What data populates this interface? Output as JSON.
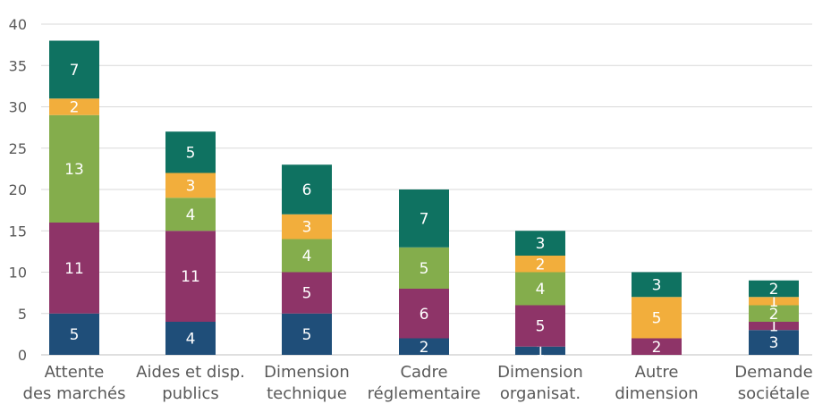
{
  "chart_data": {
    "type": "bar",
    "stacked": true,
    "title": "",
    "xlabel": "",
    "ylabel": "",
    "ylim": [
      0,
      40
    ],
    "yticks": [
      0,
      5,
      10,
      15,
      20,
      25,
      30,
      35,
      40
    ],
    "grid": true,
    "legend": "none",
    "categories": [
      [
        "Attente",
        "des marchés"
      ],
      [
        "Aides et disp.",
        "publics"
      ],
      [
        "Dimension",
        "technique"
      ],
      [
        "Cadre",
        "réglementaire"
      ],
      [
        "Dimension",
        "organisat."
      ],
      [
        "Autre",
        "dimension"
      ],
      [
        "Demande",
        "sociétale"
      ]
    ],
    "series": [
      {
        "color": "#1f4e79",
        "values": [
          5,
          4,
          5,
          2,
          1,
          0,
          3
        ]
      },
      {
        "color": "#8e3468",
        "values": [
          11,
          11,
          5,
          6,
          5,
          2,
          1
        ]
      },
      {
        "color": "#84ad4c",
        "values": [
          13,
          4,
          4,
          5,
          4,
          0,
          2
        ]
      },
      {
        "color": "#f2ae3c",
        "values": [
          2,
          3,
          3,
          0,
          2,
          5,
          1
        ]
      },
      {
        "color": "#0f7261",
        "values": [
          7,
          5,
          6,
          7,
          3,
          3,
          2
        ]
      }
    ]
  }
}
